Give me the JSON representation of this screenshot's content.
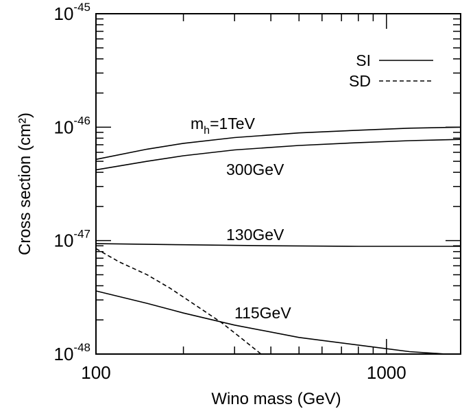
{
  "chart_data": {
    "type": "line",
    "xlabel": "Wino mass (GeV)",
    "ylabel": "Cross section (cm²)",
    "xscale": "log",
    "yscale": "log",
    "xlim": [
      100,
      1800
    ],
    "ylim": [
      1e-48,
      1e-45
    ],
    "grid": false,
    "legend_position": "top-right",
    "x_ticks": [
      {
        "value": 100,
        "label": "100"
      },
      {
        "value": 1000,
        "label": "1000"
      }
    ],
    "y_ticks": [
      {
        "value": 1e-48,
        "base": "10",
        "exp": "-48"
      },
      {
        "value": 1e-47,
        "base": "10",
        "exp": "-47"
      },
      {
        "value": 1e-46,
        "base": "10",
        "exp": "-46"
      },
      {
        "value": 1e-45,
        "base": "10",
        "exp": "-45"
      }
    ],
    "legend": [
      {
        "name": "SI",
        "style": "solid"
      },
      {
        "name": "SD",
        "style": "dashed"
      }
    ],
    "series": [
      {
        "label": "m",
        "label_sub": "h",
        "label_rest": "=1TeV",
        "type": "SI",
        "style": "solid",
        "x": [
          100,
          150,
          200,
          300,
          500,
          800,
          1200,
          1800
        ],
        "y": [
          5.2e-47,
          6.4e-47,
          7.2e-47,
          8.1e-47,
          8.9e-47,
          9.4e-47,
          9.8e-47,
          1e-46
        ]
      },
      {
        "label": "300GeV",
        "type": "SI",
        "style": "solid",
        "x": [
          100,
          150,
          200,
          300,
          500,
          800,
          1200,
          1800
        ],
        "y": [
          4.2e-47,
          5e-47,
          5.6e-47,
          6.3e-47,
          6.9e-47,
          7.3e-47,
          7.6e-47,
          7.8e-47
        ],
        "label_anchor": [
          330,
          4.2e-47
        ]
      },
      {
        "label": "130GeV",
        "type": "SI",
        "style": "solid",
        "x": [
          100,
          200,
          400,
          800,
          1800
        ],
        "y": [
          9.4e-48,
          9.2e-48,
          9e-48,
          8.9e-48,
          8.9e-48
        ],
        "label_anchor": [
          330,
          1.15e-47
        ]
      },
      {
        "label": "115GeV",
        "type": "SI",
        "style": "solid",
        "x": [
          100,
          150,
          200,
          300,
          500,
          800,
          1200,
          1600,
          1800
        ],
        "y": [
          3.6e-48,
          2.8e-48,
          2.3e-48,
          1.8e-48,
          1.4e-48,
          1.2e-48,
          1.05e-48,
          1e-48,
          1e-48
        ],
        "label_anchor": [
          350,
          2.3e-48
        ]
      },
      {
        "label": "",
        "type": "SD",
        "style": "dashed",
        "x": [
          100,
          120,
          150,
          180,
          220,
          270,
          320,
          370
        ],
        "y": [
          8.5e-48,
          6.5e-48,
          5e-48,
          3.8e-48,
          2.7e-48,
          1.9e-48,
          1.35e-48,
          1e-48
        ]
      }
    ]
  }
}
